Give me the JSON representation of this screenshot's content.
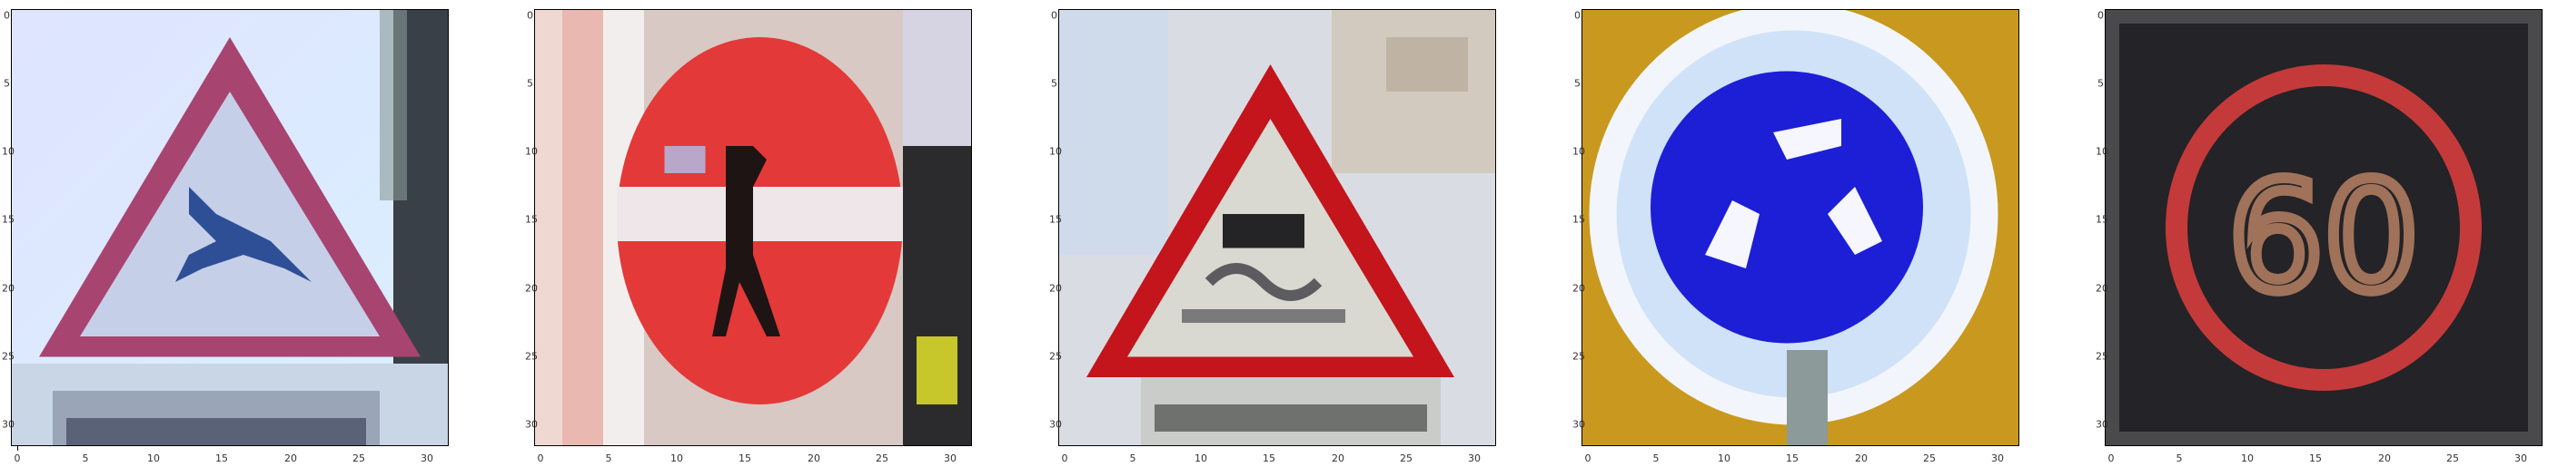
{
  "figure": {
    "panels": [
      {
        "id": "deer-crossing",
        "x_ticks": [
          "0",
          "5",
          "10",
          "15",
          "20",
          "25",
          "30"
        ],
        "y_ticks": [
          "0",
          "5",
          "10",
          "15",
          "20",
          "25",
          "30"
        ]
      },
      {
        "id": "no-entry",
        "x_ticks": [
          "0",
          "5",
          "10",
          "15",
          "20",
          "25",
          "30"
        ],
        "y_ticks": [
          "0",
          "5",
          "10",
          "15",
          "20",
          "25",
          "30"
        ]
      },
      {
        "id": "slippery-road",
        "x_ticks": [
          "0",
          "5",
          "10",
          "15",
          "20",
          "25",
          "30"
        ],
        "y_ticks": [
          "0",
          "5",
          "10",
          "15",
          "20",
          "25",
          "30"
        ]
      },
      {
        "id": "roundabout",
        "x_ticks": [
          "0",
          "5",
          "10",
          "15",
          "20",
          "25",
          "30"
        ],
        "y_ticks": [
          "0",
          "5",
          "10",
          "15",
          "20",
          "25",
          "30"
        ]
      },
      {
        "id": "speed-limit-60",
        "x_ticks": [
          "0",
          "5",
          "10",
          "15",
          "20",
          "25",
          "30"
        ],
        "y_ticks": [
          "0",
          "5",
          "10",
          "15",
          "20",
          "25",
          "30"
        ],
        "sign_text": "60"
      }
    ],
    "colors": {
      "sign_red": "#d62c2c",
      "sign_blue": "#1d1fd6",
      "triangle_border": "#c11a2a",
      "led_red": "#c43a3a",
      "led_amber": "#a0725a"
    }
  }
}
